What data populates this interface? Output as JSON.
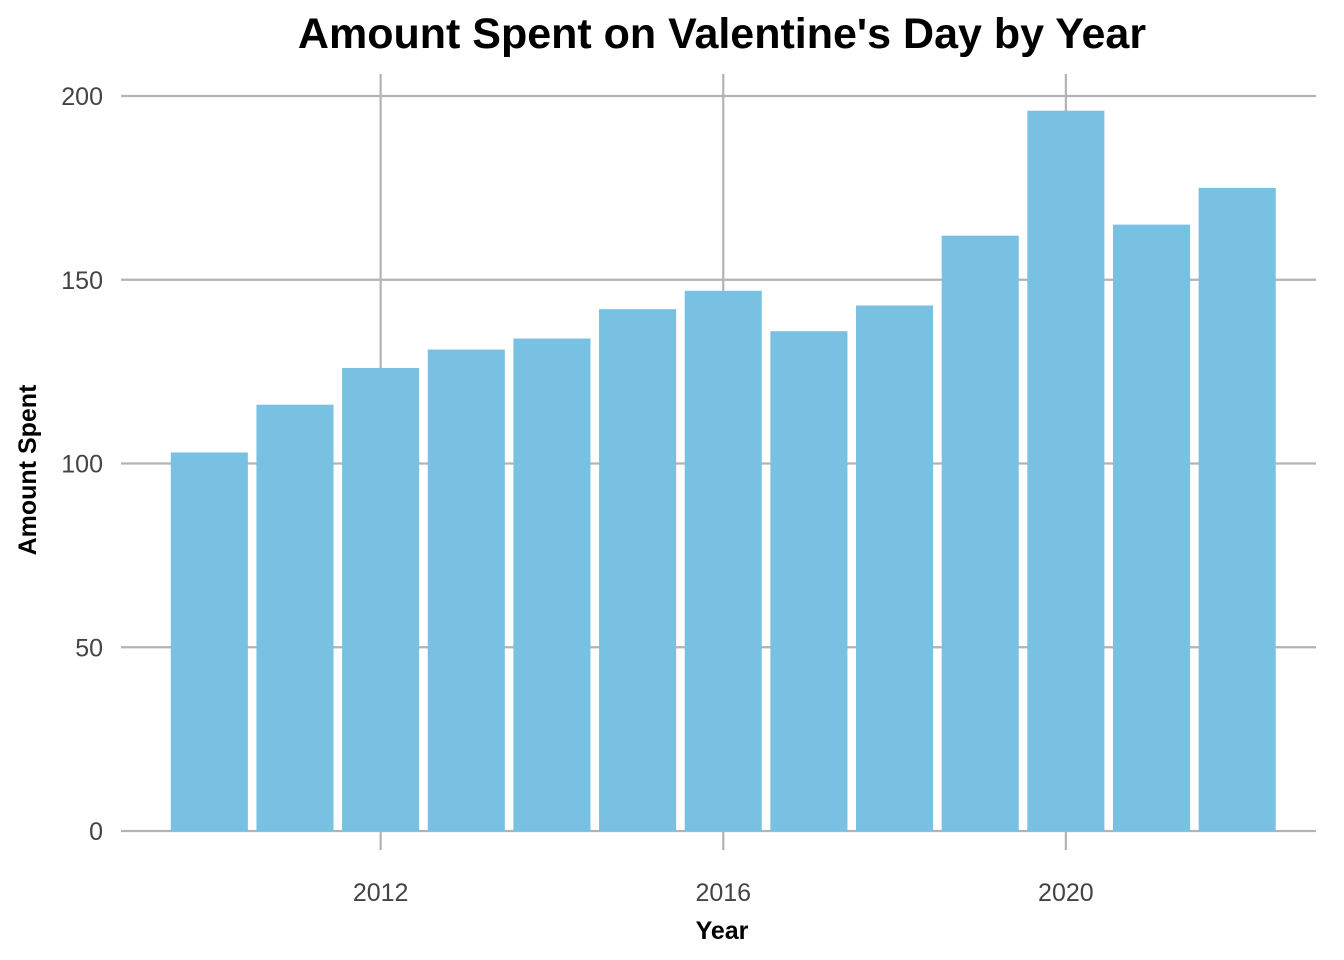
{
  "chart_data": {
    "type": "bar",
    "title": "Amount Spent on Valentine's Day by Year",
    "xlabel": "Year",
    "ylabel": "Amount Spent",
    "x": [
      2010,
      2011,
      2012,
      2013,
      2014,
      2015,
      2016,
      2017,
      2018,
      2019,
      2020,
      2021,
      2022
    ],
    "values": [
      103,
      116,
      126,
      131,
      134,
      142,
      147,
      136,
      143,
      162,
      196,
      165,
      175
    ],
    "ylim": [
      0,
      200
    ],
    "xlim": [
      2009.5,
      2022.5
    ],
    "y_ticks": [
      0,
      50,
      100,
      150,
      200
    ],
    "x_ticks": [
      2012,
      2016,
      2020
    ],
    "y_tick_labels": [
      "0",
      "50",
      "100",
      "150",
      "200"
    ],
    "x_tick_labels": [
      "2012",
      "2016",
      "2020"
    ],
    "grid": true,
    "legend": "none",
    "bar_color": "#79c1e3",
    "grid_color": "#b3b3b3"
  }
}
